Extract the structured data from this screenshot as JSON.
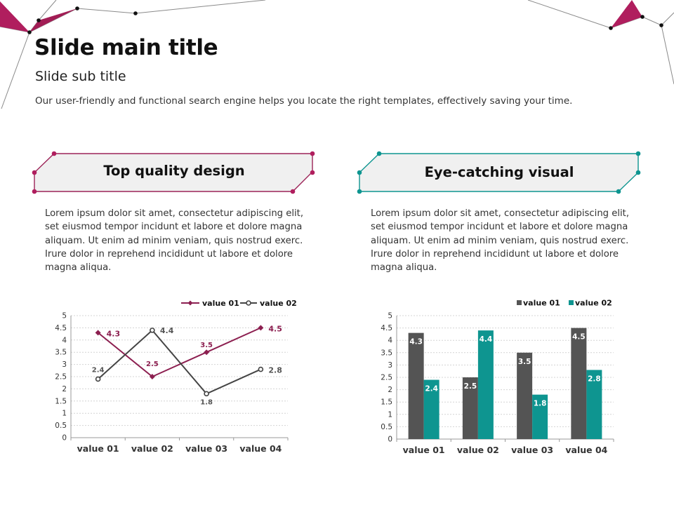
{
  "slide": {
    "title": "Slide main title",
    "subtitle": "Slide sub title",
    "description": "Our user-friendly and functional search engine helps you locate the right templates, effectively saving your time."
  },
  "colors": {
    "magenta": "#9c2458",
    "teal": "#0e9590",
    "gray": "#545454",
    "cardFill": "#f0f0f0"
  },
  "cards": [
    {
      "title": "Top quality design",
      "body": "Lorem ipsum dolor sit amet, consectetur adipiscing elit, set eiusmod tempor incidunt et labore et dolore magna aliquam. Ut enim ad minim veniam, quis nostrud exerc. Irure dolor in reprehend incididunt ut labore et dolore magna aliqua."
    },
    {
      "title": "Eye-catching visual",
      "body": "Lorem ipsum dolor sit amet, consectetur adipiscing elit, set eiusmod tempor incidunt et labore et dolore magna aliquam. Ut enim ad minim veniam, quis nostrud exerc. Irure dolor in reprehend incididunt ut labore et dolore magna aliqua."
    }
  ],
  "chart_data": [
    {
      "type": "line",
      "categories": [
        "value 01",
        "value 02",
        "value 03",
        "value 04"
      ],
      "series": [
        {
          "name": "value 01",
          "values": [
            4.3,
            2.5,
            3.5,
            4.5
          ],
          "color": "#8c1f50"
        },
        {
          "name": "value 02",
          "values": [
            2.4,
            4.4,
            1.8,
            2.8
          ],
          "color": "#444444"
        }
      ],
      "ylim": [
        0,
        5
      ],
      "yticks": [
        "0",
        "0.5",
        "1",
        "1.5",
        "2",
        "2.5",
        "3",
        "3.5",
        "4",
        "4.5",
        "5"
      ],
      "grid": true,
      "legend": "top-right"
    },
    {
      "type": "bar",
      "categories": [
        "value 01",
        "value 02",
        "value 03",
        "value 04"
      ],
      "series": [
        {
          "name": "value 01",
          "values": [
            4.3,
            2.5,
            3.5,
            4.5
          ],
          "color": "#545454"
        },
        {
          "name": "value 02",
          "values": [
            2.4,
            4.4,
            1.8,
            2.8
          ],
          "color": "#0e9590"
        }
      ],
      "ylim": [
        0,
        5
      ],
      "yticks": [
        "0",
        "0.5",
        "1",
        "1.5",
        "2",
        "2.5",
        "3",
        "3.5",
        "4",
        "4.5",
        "5"
      ],
      "grid": true,
      "legend": "top-right"
    }
  ]
}
